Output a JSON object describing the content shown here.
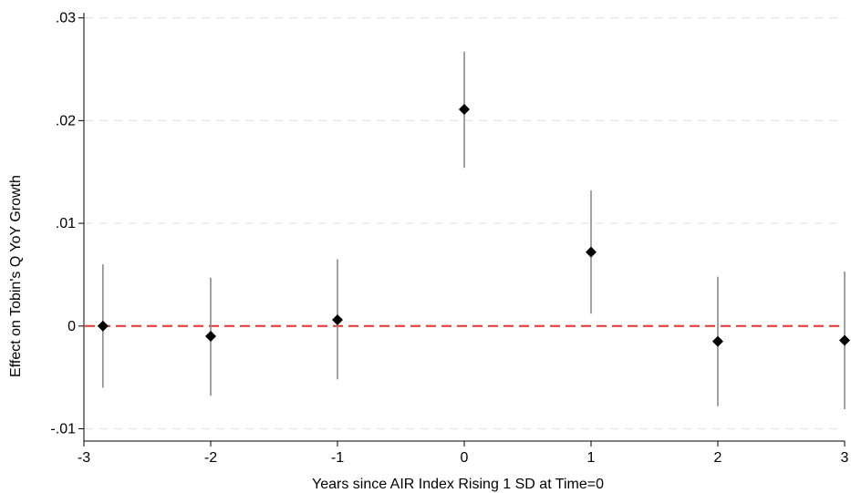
{
  "chart_data": {
    "type": "scatter",
    "title": "",
    "xlabel": "Years since AIR Index Rising 1 SD at Time=0",
    "ylabel": "Effect on Tobin's Q YoY Growth",
    "xlim": [
      -3,
      3
    ],
    "ylim": [
      -0.0112,
      0.0305
    ],
    "x_ticks": [
      -3,
      -2,
      -1,
      0,
      1,
      2,
      3
    ],
    "x_tick_labels": [
      "-3",
      "-2",
      "-1",
      "0",
      "1",
      "2",
      "3"
    ],
    "y_ticks": [
      -0.01,
      0,
      0.01,
      0.02,
      0.03
    ],
    "y_tick_labels": [
      "-.01",
      "0",
      ".01",
      ".02",
      ".03"
    ],
    "grid": true,
    "reference_line": {
      "y": 0,
      "style": "dashed"
    },
    "points": [
      {
        "x": -2.85,
        "y": 0.0,
        "ci_low": -0.006,
        "ci_high": 0.006
      },
      {
        "x": -2,
        "y": -0.001,
        "ci_low": -0.0068,
        "ci_high": 0.0047
      },
      {
        "x": -1,
        "y": 0.0006,
        "ci_low": -0.0052,
        "ci_high": 0.0065
      },
      {
        "x": 0,
        "y": 0.0211,
        "ci_low": 0.0154,
        "ci_high": 0.0267
      },
      {
        "x": 1,
        "y": 0.0072,
        "ci_low": 0.0012,
        "ci_high": 0.0132
      },
      {
        "x": 2,
        "y": -0.0015,
        "ci_low": -0.0078,
        "ci_high": 0.0048
      },
      {
        "x": 3,
        "y": -0.0014,
        "ci_low": -0.0081,
        "ci_high": 0.0053
      }
    ],
    "colors": {
      "marker": "#000000",
      "ci": "#8a8a8a",
      "reference_line": "#e8342a",
      "grid": "#e3e3e3",
      "axis": "#000000"
    }
  }
}
